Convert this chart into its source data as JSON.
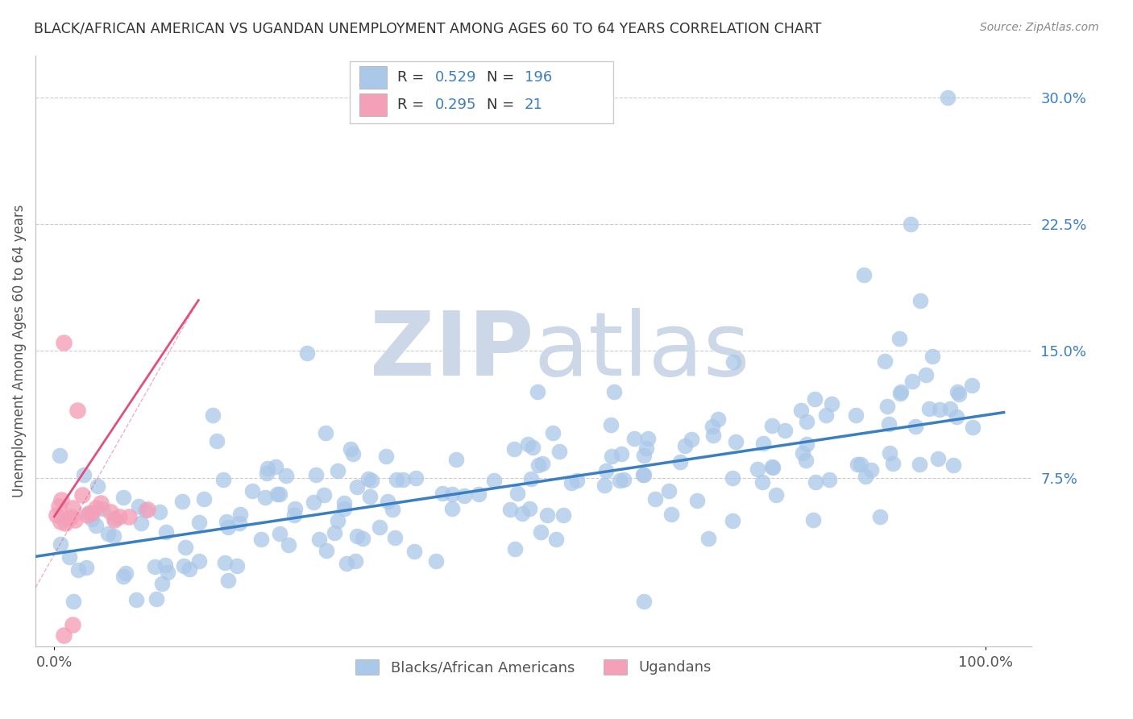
{
  "title": "BLACK/AFRICAN AMERICAN VS UGANDAN UNEMPLOYMENT AMONG AGES 60 TO 64 YEARS CORRELATION CHART",
  "source": "Source: ZipAtlas.com",
  "ylabel": "Unemployment Among Ages 60 to 64 years",
  "ytick_labels": [
    "7.5%",
    "15.0%",
    "22.5%",
    "30.0%"
  ],
  "ytick_values": [
    0.075,
    0.15,
    0.225,
    0.3
  ],
  "xlim": [
    -0.02,
    1.05
  ],
  "ylim": [
    -0.025,
    0.325
  ],
  "blue_R": 0.529,
  "blue_N": 196,
  "pink_R": 0.295,
  "pink_N": 21,
  "blue_color": "#aac8e8",
  "pink_color": "#f4a0b8",
  "blue_line_color": "#3a7fc1",
  "pink_line_color": "#e0507a",
  "value_color": "#3a7fc1",
  "watermark_zip": "ZIP",
  "watermark_atlas": "atlas",
  "watermark_color": "#ccd8e8",
  "background_color": "#ffffff",
  "grid_color": "#cccccc",
  "title_color": "#333333",
  "axis_color": "#555555",
  "blue_scatter_seed": 42,
  "pink_scatter_seed": 7,
  "blue_line_intercept": 0.03,
  "blue_line_slope": 0.082,
  "pink_line_intercept": 0.055,
  "pink_line_slope": 0.3
}
